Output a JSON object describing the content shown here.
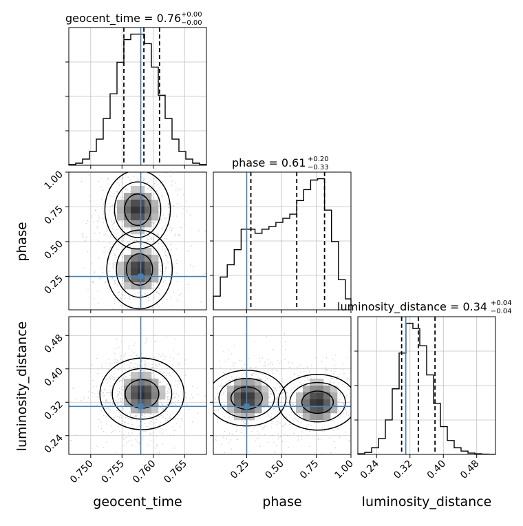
{
  "chart_data": {
    "type": "corner",
    "parameters": [
      "geocent_time",
      "phase",
      "luminosity_distance"
    ],
    "injected_values": {
      "geocent_time": 0.758,
      "phase": 0.25,
      "luminosity_distance": 0.31
    },
    "colors": {
      "truth": "#4682b4",
      "hist": "#000000",
      "grid": "#c0c0c0",
      "scatter": "#b4b4b4"
    },
    "grid": true,
    "titles": {
      "geocent_time": {
        "text": "geocent_time = 0.76",
        "sup": "+0.00",
        "sub": "−0.00"
      },
      "phase": {
        "text": "phase = 0.61",
        "sup": "+0.20",
        "sub": "−0.33"
      },
      "luminosity_distance": {
        "text": "luminosity_distance = 0.34",
        "sup": "+0.04",
        "sub": "−0.04"
      }
    },
    "axes": {
      "geocent_time": {
        "range": [
          0.7465,
          0.7685
        ],
        "ticks": [
          0.75,
          0.755,
          0.76,
          0.765
        ],
        "tick_labels": [
          "0.750",
          "0.755",
          "0.760",
          "0.765"
        ],
        "label": "geocent_time"
      },
      "phase": {
        "range": [
          0.01,
          1.0
        ],
        "ticks": [
          0.25,
          0.5,
          0.75,
          1.0
        ],
        "tick_labels": [
          "0.25",
          "0.50",
          "0.75",
          "1.00"
        ],
        "label": "phase"
      },
      "luminosity_distance": {
        "range": [
          0.195,
          0.525
        ],
        "ticks": [
          0.24,
          0.32,
          0.4,
          0.48
        ],
        "tick_labels": [
          "0.24",
          "0.32",
          "0.40",
          "0.48"
        ],
        "label": "luminosity_distance"
      }
    },
    "marginals": {
      "geocent_time": {
        "bin_edges": [
          0.7465,
          0.7476,
          0.7487,
          0.7498,
          0.7509,
          0.752,
          0.7531,
          0.7542,
          0.7553,
          0.7564,
          0.7575,
          0.7586,
          0.7597,
          0.7608,
          0.7619,
          0.763,
          0.7641,
          0.7652,
          0.7663,
          0.7674,
          0.7685
        ],
        "counts": [
          1,
          3,
          9,
          20,
          38,
          68,
          104,
          150,
          183,
          191,
          191,
          177,
          143,
          102,
          68,
          38,
          20,
          9,
          3,
          1
        ],
        "quantiles": [
          0.7553,
          0.7585,
          0.761
        ]
      },
      "phase": {
        "bin_edges": [
          0.01,
          0.06,
          0.11,
          0.16,
          0.21,
          0.26,
          0.31,
          0.36,
          0.41,
          0.46,
          0.51,
          0.56,
          0.61,
          0.66,
          0.71,
          0.76,
          0.81,
          0.86,
          0.91,
          0.96,
          1.0
        ],
        "counts": [
          0.1,
          0.24,
          0.33,
          0.44,
          0.59,
          0.59,
          0.56,
          0.59,
          0.61,
          0.64,
          0.67,
          0.7,
          0.8,
          0.88,
          0.95,
          0.96,
          0.73,
          0.5,
          0.22,
          0.08
        ],
        "quantiles": [
          0.28,
          0.61,
          0.81
        ]
      },
      "luminosity_distance": {
        "bin_edges": [
          0.195,
          0.2115,
          0.228,
          0.2445,
          0.261,
          0.2775,
          0.294,
          0.3105,
          0.327,
          0.3435,
          0.36,
          0.3765,
          0.393,
          0.4095,
          0.426,
          0.4425,
          0.459,
          0.4755,
          0.492,
          0.5085,
          0.525
        ],
        "counts": [
          1,
          3,
          10,
          24,
          52,
          99,
          153,
          198,
          190,
          164,
          120,
          77,
          42,
          21,
          10,
          5,
          2,
          1,
          0.5,
          0.2
        ],
        "quantiles": [
          0.3,
          0.34,
          0.38
        ]
      }
    },
    "pairs": [
      {
        "x": "geocent_time",
        "y": "phase",
        "mode_points": [
          [
            0.7575,
            0.73
          ],
          [
            0.7578,
            0.3
          ]
        ]
      },
      {
        "x": "geocent_time",
        "y": "luminosity_distance",
        "mode_points": [
          [
            0.7582,
            0.34
          ]
        ]
      },
      {
        "x": "phase",
        "y": "luminosity_distance",
        "mode_points": [
          [
            0.25,
            0.33
          ],
          [
            0.76,
            0.32
          ]
        ]
      }
    ]
  }
}
